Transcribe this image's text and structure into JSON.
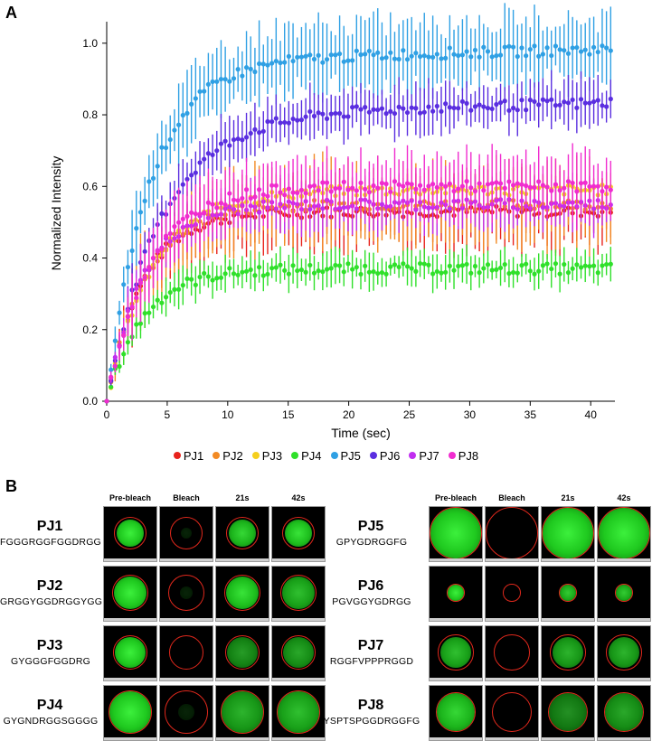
{
  "panels": {
    "a_label": "A",
    "b_label": "B"
  },
  "chart_data": {
    "type": "scatter",
    "title": "",
    "xlabel": "Time (sec)",
    "ylabel": "Normalized Intensity",
    "xlim": [
      0,
      42
    ],
    "ylim": [
      0,
      1.05
    ],
    "xticks": [
      0,
      5,
      10,
      15,
      20,
      25,
      30,
      35,
      40
    ],
    "yticks": [
      "0.0",
      "0.2",
      "0.4",
      "0.6",
      "0.8",
      "1.0"
    ],
    "ytick_values": [
      0,
      0.2,
      0.4,
      0.6,
      0.8,
      1.0
    ],
    "series": [
      {
        "name": "PJ1",
        "color": "#e8231c",
        "plateau": 0.53,
        "tau": 3.0,
        "err": 0.09
      },
      {
        "name": "PJ2",
        "color": "#f28a24",
        "plateau": 0.55,
        "tau": 3.2,
        "err": 0.1
      },
      {
        "name": "PJ3",
        "color": "#f5cf1d",
        "plateau": 0.59,
        "tau": 3.8,
        "err": 0.02
      },
      {
        "name": "PJ4",
        "color": "#2fe02a",
        "plateau": 0.37,
        "tau": 3.0,
        "err": 0.04
      },
      {
        "name": "PJ5",
        "color": "#2fa0e4",
        "plateau": 0.95,
        "tau": 3.5,
        "err": 0.09
      },
      {
        "name": "PJ6",
        "color": "#5a2ee0",
        "plateau": 0.8,
        "tau": 4.5,
        "err": 0.06
      },
      {
        "name": "PJ7",
        "color": "#c12ef0",
        "plateau": 0.55,
        "tau": 3.0,
        "err": 0.06
      },
      {
        "name": "PJ8",
        "color": "#f02ccf",
        "plateau": 0.6,
        "tau": 3.5,
        "err": 0.08
      }
    ]
  },
  "frap": {
    "col_headers": [
      "Pre-bleach",
      "Bleach",
      "21s",
      "42s"
    ],
    "rows": [
      {
        "name": "PJ1",
        "seq": "FGGGRGGFGGDRGG",
        "blob_size": 0.52,
        "ring_size": 0.62,
        "bleach_residual": 0.1,
        "recovery": [
          1.0,
          0.9,
          0.95
        ]
      },
      {
        "name": "PJ2",
        "seq": "GRGGYGGDRGGYGG",
        "blob_size": 0.62,
        "ring_size": 0.7,
        "bleach_residual": 0.02,
        "recovery": [
          1.0,
          0.95,
          0.8
        ]
      },
      {
        "name": "PJ3",
        "seq": "GYGGGFGGDRG",
        "blob_size": 0.6,
        "ring_size": 0.66,
        "bleach_residual": 0.0,
        "recovery": [
          1.0,
          0.65,
          0.7
        ]
      },
      {
        "name": "PJ4",
        "seq": "GYGNDRGGSGGGG",
        "blob_size": 0.8,
        "ring_size": 0.84,
        "bleach_residual": 0.05,
        "recovery": [
          1.0,
          0.75,
          0.8
        ]
      },
      {
        "name": "PJ5",
        "seq": "GPYGDRGGFG",
        "blob_size": 0.98,
        "ring_size": 1.0,
        "bleach_residual": 0.0,
        "recovery": [
          1.0,
          1.0,
          1.0
        ]
      },
      {
        "name": "PJ6",
        "seq": "PGVGGYGDRGG",
        "blob_size": 0.3,
        "ring_size": 0.34,
        "bleach_residual": 0.0,
        "recovery": [
          1.0,
          0.85,
          0.85
        ]
      },
      {
        "name": "PJ7",
        "seq": "RGGFVPPPRGGD",
        "blob_size": 0.6,
        "ring_size": 0.68,
        "bleach_residual": 0.0,
        "recovery": [
          0.8,
          0.75,
          0.75
        ]
      },
      {
        "name": "PJ8",
        "seq": "YSPTSPGGDRGGFG",
        "blob_size": 0.72,
        "ring_size": 0.76,
        "bleach_residual": 0.0,
        "recovery": [
          0.9,
          0.6,
          0.7
        ]
      }
    ]
  }
}
